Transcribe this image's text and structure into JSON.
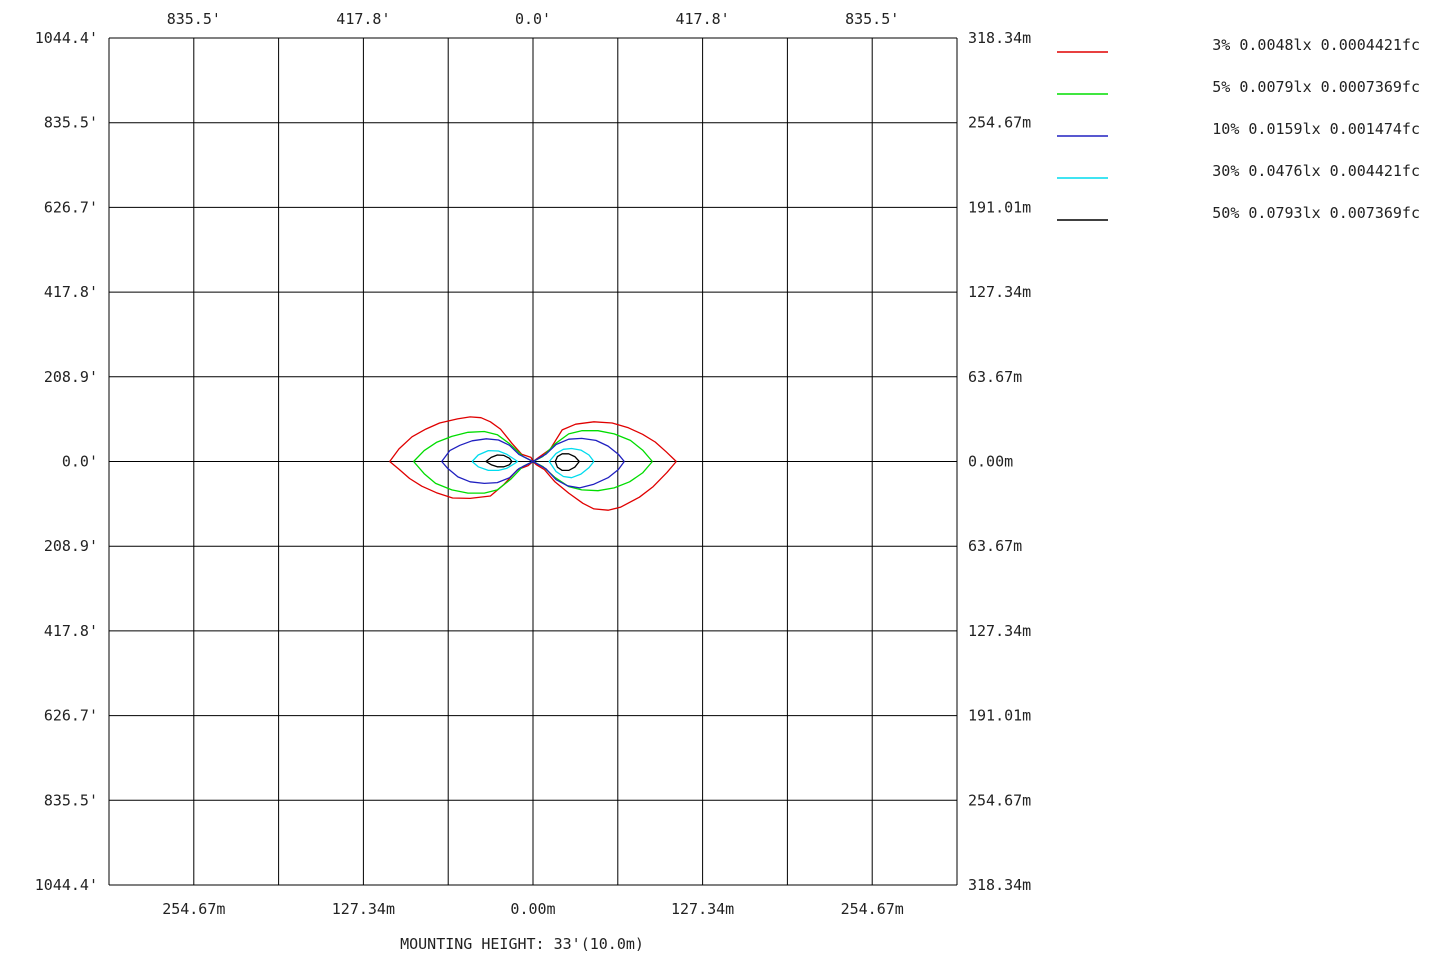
{
  "chart_data": {
    "type": "line",
    "title": "",
    "xlim": [
      -1044.4,
      1044.4
    ],
    "ylim": [
      -1044.4,
      1044.4
    ],
    "grid": true,
    "legend_placement": "right",
    "x_ticks_top": [
      "835.5'",
      "417.8'",
      "0.0'",
      "417.8'",
      "835.5'"
    ],
    "x_ticks_bottom": [
      "254.67m",
      "127.34m",
      "0.00m",
      "127.34m",
      "254.67m"
    ],
    "y_ticks_left": [
      "1044.4'",
      "835.5'",
      "626.7'",
      "417.8'",
      "208.9'",
      "0.0'",
      "208.9'",
      "417.8'",
      "626.7'",
      "835.5'",
      "1044.4'"
    ],
    "y_ticks_right": [
      "318.34m",
      "254.67m",
      "191.01m",
      "127.34m",
      "63.67m",
      "0.00m",
      "63.67m",
      "127.34m",
      "191.01m",
      "254.67m",
      "318.34m"
    ],
    "footer": "MOUNTING HEIGHT: 33'(10.0m)",
    "series": [
      {
        "name": "3% 0.0048lx 0.0004421fc",
        "color": "#e00000",
        "lobes": [
          [
            [
              -353,
              0
            ],
            [
              -330,
              31
            ],
            [
              -298,
              61
            ],
            [
              -264,
              80
            ],
            [
              -230,
              95
            ],
            [
              -186,
              105
            ],
            [
              -155,
              110
            ],
            [
              -128,
              108
            ],
            [
              -105,
              98
            ],
            [
              -80,
              80
            ],
            [
              -52,
              45
            ],
            [
              -28,
              18
            ],
            [
              -5,
              10
            ],
            [
              0,
              0
            ],
            [
              -12,
              -10
            ],
            [
              -38,
              -20
            ],
            [
              -72,
              -57
            ],
            [
              -105,
              -85
            ],
            [
              -155,
              -91
            ],
            [
              -198,
              -90
            ],
            [
              -238,
              -77
            ],
            [
              -274,
              -61
            ],
            [
              -304,
              -42
            ],
            [
              -330,
              -19
            ],
            [
              -353,
              0
            ]
          ],
          [
            [
              353,
              0
            ],
            [
              330,
              -27
            ],
            [
              296,
              -62
            ],
            [
              262,
              -88
            ],
            [
              215,
              -113
            ],
            [
              185,
              -120
            ],
            [
              150,
              -117
            ],
            [
              123,
              -103
            ],
            [
              88,
              -78
            ],
            [
              54,
              -50
            ],
            [
              28,
              -20
            ],
            [
              8,
              -8
            ],
            [
              0,
              0
            ],
            [
              14,
              10
            ],
            [
              42,
              30
            ],
            [
              72,
              78
            ],
            [
              105,
              92
            ],
            [
              150,
              98
            ],
            [
              195,
              95
            ],
            [
              235,
              83
            ],
            [
              270,
              67
            ],
            [
              301,
              48
            ],
            [
              328,
              24
            ],
            [
              353,
              0
            ]
          ]
        ]
      },
      {
        "name": "5% 0.0079lx 0.0007369fc",
        "color": "#00dd00",
        "lobes": [
          [
            [
              -294,
              0
            ],
            [
              -268,
              27
            ],
            [
              -238,
              47
            ],
            [
              -200,
              62
            ],
            [
              -160,
              72
            ],
            [
              -120,
              74
            ],
            [
              -88,
              66
            ],
            [
              -58,
              44
            ],
            [
              -24,
              12
            ],
            [
              0,
              0
            ],
            [
              -25,
              -12
            ],
            [
              -55,
              -44
            ],
            [
              -88,
              -70
            ],
            [
              -120,
              -78
            ],
            [
              -160,
              -78
            ],
            [
              -200,
              -70
            ],
            [
              -240,
              -54
            ],
            [
              -268,
              -30
            ],
            [
              -294,
              0
            ]
          ],
          [
            [
              294,
              0
            ],
            [
              270,
              -28
            ],
            [
              238,
              -50
            ],
            [
              200,
              -65
            ],
            [
              160,
              -72
            ],
            [
              120,
              -70
            ],
            [
              88,
              -62
            ],
            [
              55,
              -40
            ],
            [
              24,
              -12
            ],
            [
              0,
              0
            ],
            [
              24,
              12
            ],
            [
              55,
              44
            ],
            [
              88,
              68
            ],
            [
              120,
              76
            ],
            [
              160,
              76
            ],
            [
              200,
              68
            ],
            [
              240,
              52
            ],
            [
              270,
              28
            ],
            [
              294,
              0
            ]
          ]
        ]
      },
      {
        "name": "10% 0.0159lx 0.001474fc",
        "color": "#2020c0",
        "lobes": [
          [
            [
              -225,
              0
            ],
            [
              -205,
              27
            ],
            [
              -180,
              40
            ],
            [
              -150,
              51
            ],
            [
              -115,
              56
            ],
            [
              -85,
              53
            ],
            [
              -58,
              40
            ],
            [
              -34,
              17
            ],
            [
              0,
              0
            ],
            [
              -34,
              -17
            ],
            [
              -58,
              -40
            ],
            [
              -88,
              -52
            ],
            [
              -120,
              -54
            ],
            [
              -155,
              -50
            ],
            [
              -185,
              -38
            ],
            [
              -210,
              -17
            ],
            [
              -225,
              0
            ]
          ],
          [
            [
              225,
              0
            ],
            [
              210,
              -20
            ],
            [
              185,
              -40
            ],
            [
              150,
              -56
            ],
            [
              115,
              -65
            ],
            [
              85,
              -60
            ],
            [
              57,
              -45
            ],
            [
              32,
              -18
            ],
            [
              0,
              0
            ],
            [
              32,
              18
            ],
            [
              57,
              42
            ],
            [
              88,
              55
            ],
            [
              120,
              57
            ],
            [
              155,
              52
            ],
            [
              185,
              38
            ],
            [
              210,
              18
            ],
            [
              225,
              0
            ]
          ]
        ]
      },
      {
        "name": "30% 0.0476lx 0.004421fc",
        "color": "#00dcee",
        "lobes": [
          [
            [
              -150,
              0
            ],
            [
              -135,
              16
            ],
            [
              -110,
              27
            ],
            [
              -85,
              26
            ],
            [
              -65,
              18
            ],
            [
              -45,
              5
            ],
            [
              -38,
              0
            ],
            [
              -45,
              -5
            ],
            [
              -65,
              -17
            ],
            [
              -85,
              -22
            ],
            [
              -110,
              -22
            ],
            [
              -135,
              -13
            ],
            [
              -150,
              0
            ]
          ],
          [
            [
              150,
              0
            ],
            [
              138,
              -15
            ],
            [
              118,
              -31
            ],
            [
              95,
              -40
            ],
            [
              75,
              -37
            ],
            [
              57,
              -25
            ],
            [
              40,
              0
            ],
            [
              57,
              20
            ],
            [
              75,
              30
            ],
            [
              95,
              32
            ],
            [
              118,
              28
            ],
            [
              138,
              16
            ],
            [
              150,
              0
            ]
          ]
        ]
      },
      {
        "name": "50% 0.0793lx 0.007369fc",
        "color": "#000000",
        "lobes": [
          [
            [
              -116,
              0
            ],
            [
              -103,
              10
            ],
            [
              -88,
              16
            ],
            [
              -72,
              15
            ],
            [
              -58,
              8
            ],
            [
              -52,
              0
            ],
            [
              -58,
              -8
            ],
            [
              -72,
              -13
            ],
            [
              -88,
              -13
            ],
            [
              -103,
              -8
            ],
            [
              -116,
              0
            ]
          ],
          [
            [
              114,
              0
            ],
            [
              103,
              -14
            ],
            [
              88,
              -22
            ],
            [
              72,
              -22
            ],
            [
              60,
              -14
            ],
            [
              55,
              0
            ],
            [
              60,
              12
            ],
            [
              72,
              19
            ],
            [
              88,
              19
            ],
            [
              103,
              12
            ],
            [
              114,
              0
            ]
          ]
        ]
      }
    ]
  }
}
